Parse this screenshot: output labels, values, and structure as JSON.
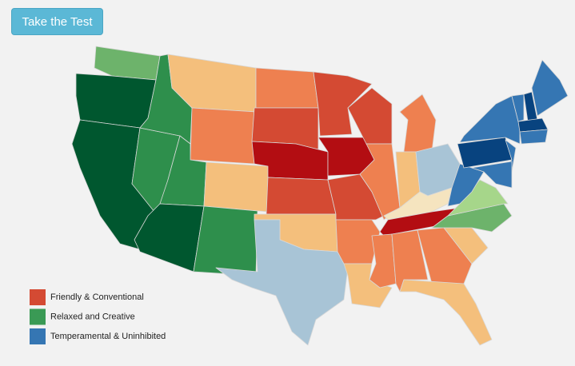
{
  "button": "Take the Test",
  "legend": [
    {
      "label": "Friendly & Conventional",
      "color": "#d44a33"
    },
    {
      "label": "Relaxed and Creative",
      "color": "#3a9a55"
    },
    {
      "label": "Temperamental & Uninhibited",
      "color": "#3576b3"
    }
  ]
}
